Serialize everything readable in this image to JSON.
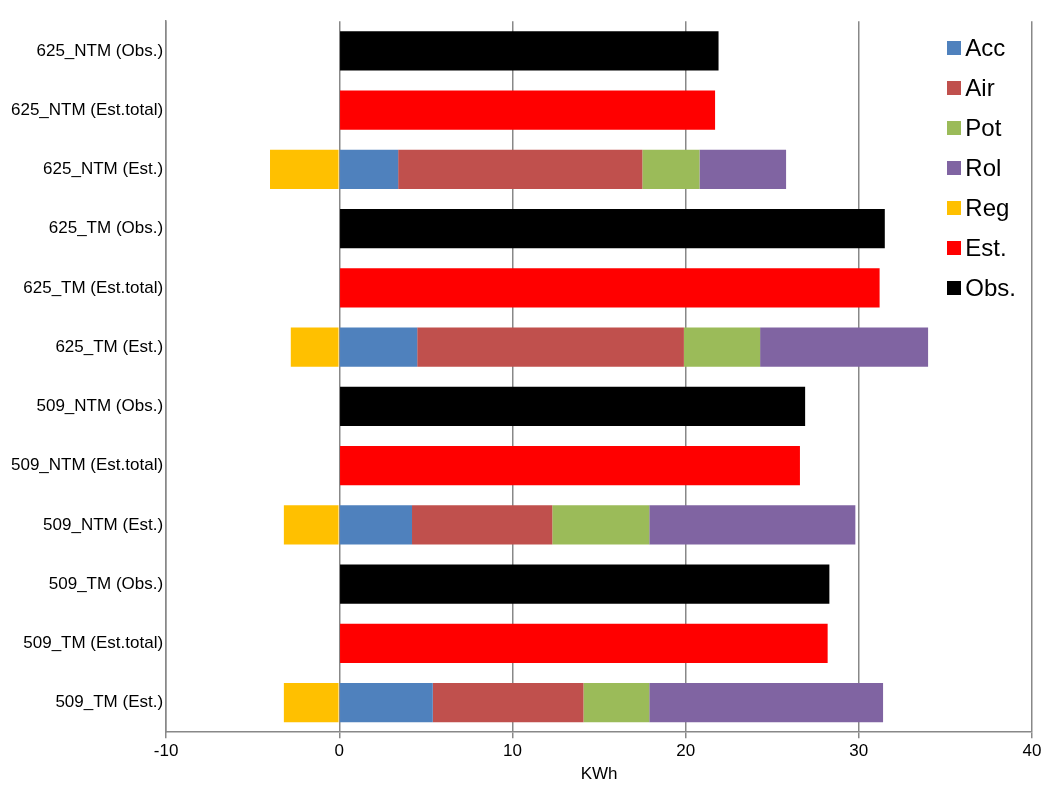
{
  "chart_data": {
    "type": "bar",
    "orientation": "horizontal",
    "stacked": true,
    "xlabel": "KWh",
    "categories": [
      "625_NTM (Obs.)",
      "625_NTM (Est.total)",
      "625_NTM (Est.)",
      "625_TM (Obs.)",
      "625_TM (Est.total)",
      "625_TM (Est.)",
      "509_NTM (Obs.)",
      "509_NTM (Est.total)",
      "509_NTM (Est.)",
      "509_TM (Obs.)",
      "509_TM (Est.total)",
      "509_TM (Est.)"
    ],
    "series": [
      {
        "name": "Acc",
        "color": "#4f81bd",
        "values": [
          null,
          null,
          3.4,
          null,
          null,
          4.5,
          null,
          null,
          4.2,
          null,
          null,
          5.4
        ]
      },
      {
        "name": "Air",
        "color": "#c0504d",
        "values": [
          null,
          null,
          14.1,
          null,
          null,
          15.4,
          null,
          null,
          8.1,
          null,
          null,
          8.7
        ]
      },
      {
        "name": "Pot",
        "color": "#9bbb59",
        "values": [
          null,
          null,
          3.3,
          null,
          null,
          4.4,
          null,
          null,
          5.6,
          null,
          null,
          3.8
        ]
      },
      {
        "name": "Rol",
        "color": "#8064a2",
        "values": [
          null,
          null,
          5.0,
          null,
          null,
          9.7,
          null,
          null,
          11.9,
          null,
          null,
          13.5
        ]
      },
      {
        "name": "Reg",
        "color": "#ffc000",
        "values": [
          null,
          null,
          -4.0,
          null,
          null,
          -2.8,
          null,
          null,
          -3.2,
          null,
          null,
          -3.2
        ]
      },
      {
        "name": "Est.",
        "color": "#ff0000",
        "values": [
          null,
          21.7,
          null,
          null,
          31.2,
          null,
          null,
          26.6,
          null,
          null,
          28.2,
          null
        ]
      },
      {
        "name": "Obs.",
        "color": "#000000",
        "values": [
          21.9,
          null,
          null,
          31.5,
          null,
          null,
          26.9,
          null,
          null,
          28.3,
          null,
          null
        ]
      }
    ],
    "xlim": [
      -10,
      40
    ],
    "xticks": [
      -10,
      0,
      10,
      20,
      30,
      40
    ],
    "grid": "x",
    "legend": "top right"
  }
}
